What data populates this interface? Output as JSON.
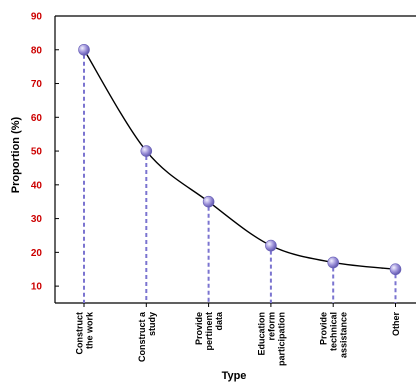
{
  "chart_data": {
    "type": "line",
    "title": "",
    "xlabel": "Type",
    "ylabel": "Proportion (%)",
    "ylim": [
      5,
      90
    ],
    "yticks": [
      10,
      20,
      30,
      40,
      50,
      60,
      70,
      80,
      90
    ],
    "grid": false,
    "smooth": true,
    "categories": [
      [
        "Construct",
        "the work"
      ],
      [
        "Construct a",
        "study"
      ],
      [
        "Provide",
        "pertinent",
        "data"
      ],
      [
        "Education",
        "reform",
        "participation"
      ],
      [
        "Provide",
        "technical",
        "assistance"
      ],
      [
        "Other"
      ]
    ],
    "series": [
      {
        "values": [
          80,
          50,
          35,
          22,
          17,
          15
        ]
      }
    ],
    "colors": {
      "line": "#000000",
      "marker": "#9a8fd8",
      "drop_line": "#7b74d0",
      "ytick_text": "#cc0000",
      "axis": "#000000"
    }
  }
}
